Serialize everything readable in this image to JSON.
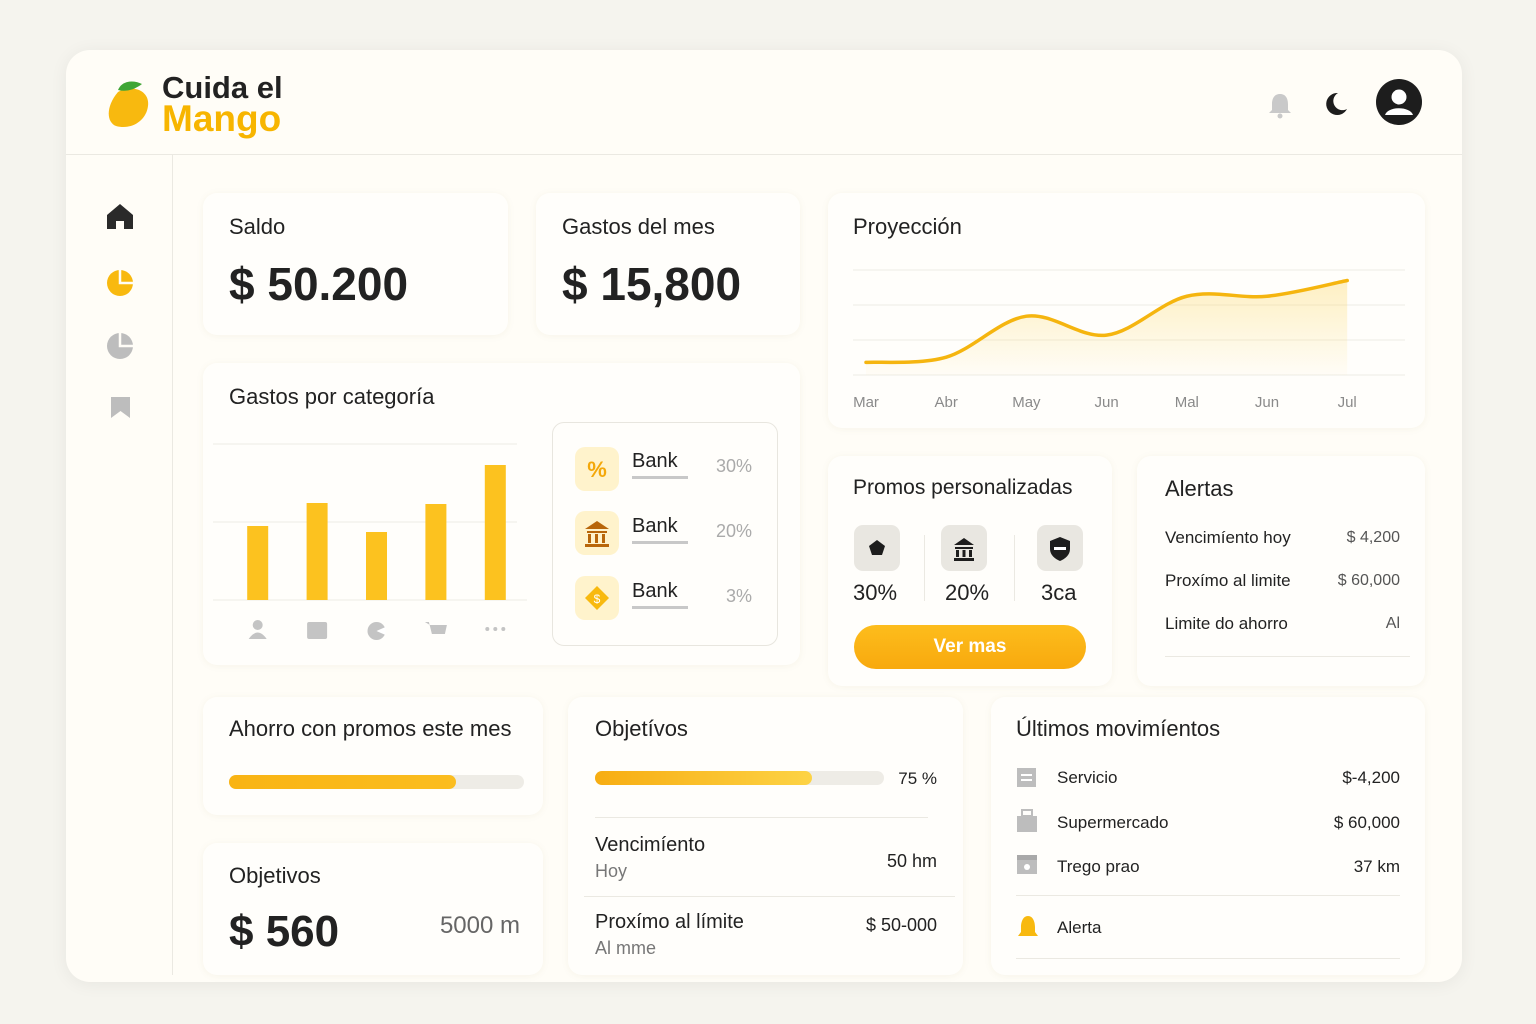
{
  "header": {
    "brand_top": "Cuida el",
    "brand_bottom": "Mango"
  },
  "summary": [
    {
      "title": "Saldo",
      "value": "$ 50.200"
    },
    {
      "title": "Gastos del mes",
      "value": "$ 15,800"
    }
  ],
  "chart_data": [
    {
      "type": "line",
      "title": "Proyección",
      "categories": [
        "Mar",
        "Abr",
        "May",
        "Jun",
        "Mal",
        "Jun",
        "Jul"
      ],
      "values": [
        12,
        17,
        56,
        38,
        75,
        75,
        90
      ],
      "color": "#f5b50f",
      "ylim": [
        0,
        100
      ]
    },
    {
      "type": "bar",
      "title": "Gastos por categoría",
      "categories": [
        null,
        null,
        null,
        null,
        null
      ],
      "values": [
        74,
        97,
        68,
        96,
        135
      ],
      "color": "#fcc21f",
      "ylim": [
        0,
        160
      ]
    }
  ],
  "category_list": [
    {
      "label": "Bank",
      "share": "30%"
    },
    {
      "label": "Bank",
      "share": "20%"
    },
    {
      "label": "Bank",
      "share": "3%"
    }
  ],
  "promos": {
    "title": "Promos personalizadas",
    "items": [
      "30%",
      "20%",
      "3ca"
    ],
    "button": "Ver mas"
  },
  "alerts": {
    "title": "Alertas",
    "rows": [
      [
        "Vencimíento hoy",
        "$ 4,200"
      ],
      [
        "Proxímo al limite",
        "$ 60,000"
      ],
      [
        "Limite do ahorro",
        "Al"
      ]
    ]
  },
  "savings": {
    "title": "Ahorro con promos este mes",
    "progress": 77
  },
  "goals": {
    "title": "Objetívos",
    "progress": 75,
    "progress_label": "75 %",
    "rows": [
      {
        "title": "Vencimíento",
        "subtitle": "Hoy",
        "value": "50 hm"
      },
      {
        "title": "Proxímo al límite",
        "subtitle": "Al mme",
        "value": "$ 50-000"
      }
    ]
  },
  "goal_summary": {
    "title": "Objetivos",
    "value": "$ 560",
    "target": "5000 m"
  },
  "movements": {
    "title": "Últimos movimíentos",
    "rows": [
      [
        "Servicio",
        "$-4,200"
      ],
      [
        "Supermercado",
        "$ 60,000"
      ],
      [
        "Trego prao",
        "37 km"
      ]
    ],
    "alert": "Alerta"
  }
}
